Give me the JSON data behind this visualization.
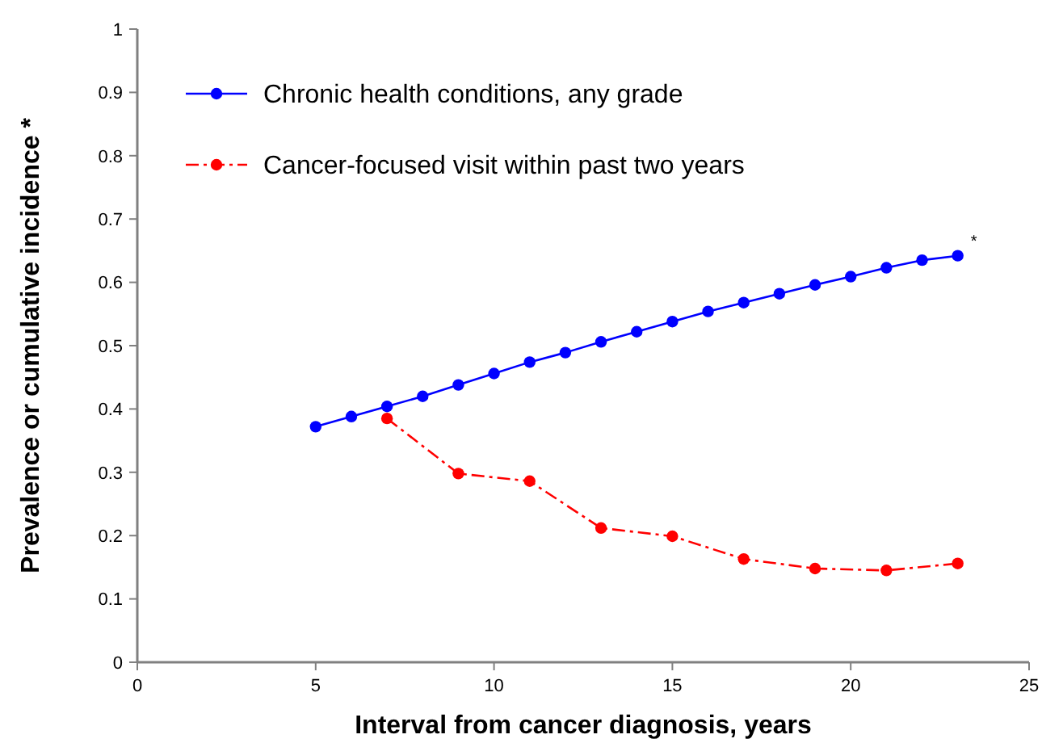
{
  "chart_data": {
    "type": "line",
    "xlabel": "Interval from cancer diagnosis, years",
    "ylabel": "Prevalence or cumulative incidence *",
    "xlim": [
      0,
      25
    ],
    "xticks": [
      0,
      5,
      10,
      15,
      20,
      25
    ],
    "ylim": [
      0,
      1
    ],
    "yticks": [
      0,
      0.1,
      0.2,
      0.3,
      0.4,
      0.5,
      0.6,
      0.7,
      0.8,
      0.9,
      1
    ],
    "grid": false,
    "legend": "top left",
    "marker": "circle",
    "series": [
      {
        "name": "Chronic health conditions, any grade",
        "color": "#0000ff",
        "line_style": "solid",
        "x": [
          5,
          6,
          7,
          8,
          9,
          10,
          11,
          12,
          13,
          14,
          15,
          16,
          17,
          18,
          19,
          20,
          21,
          22,
          23
        ],
        "values": [
          0.372,
          0.388,
          0.404,
          0.42,
          0.438,
          0.456,
          0.474,
          0.489,
          0.506,
          0.522,
          0.538,
          0.554,
          0.568,
          0.582,
          0.596,
          0.609,
          0.623,
          0.635,
          0.642
        ]
      },
      {
        "name": "Cancer-focused visit within past two years",
        "color": "#ff0000",
        "line_style": "dashed",
        "x": [
          7,
          9,
          11,
          13,
          15,
          17,
          19,
          21,
          23
        ],
        "values": [
          0.385,
          0.298,
          0.286,
          0.212,
          0.199,
          0.163,
          0.148,
          0.145,
          0.156
        ]
      }
    ],
    "annotations": [
      {
        "text": "*",
        "x": 23,
        "y": 0.642
      }
    ]
  }
}
